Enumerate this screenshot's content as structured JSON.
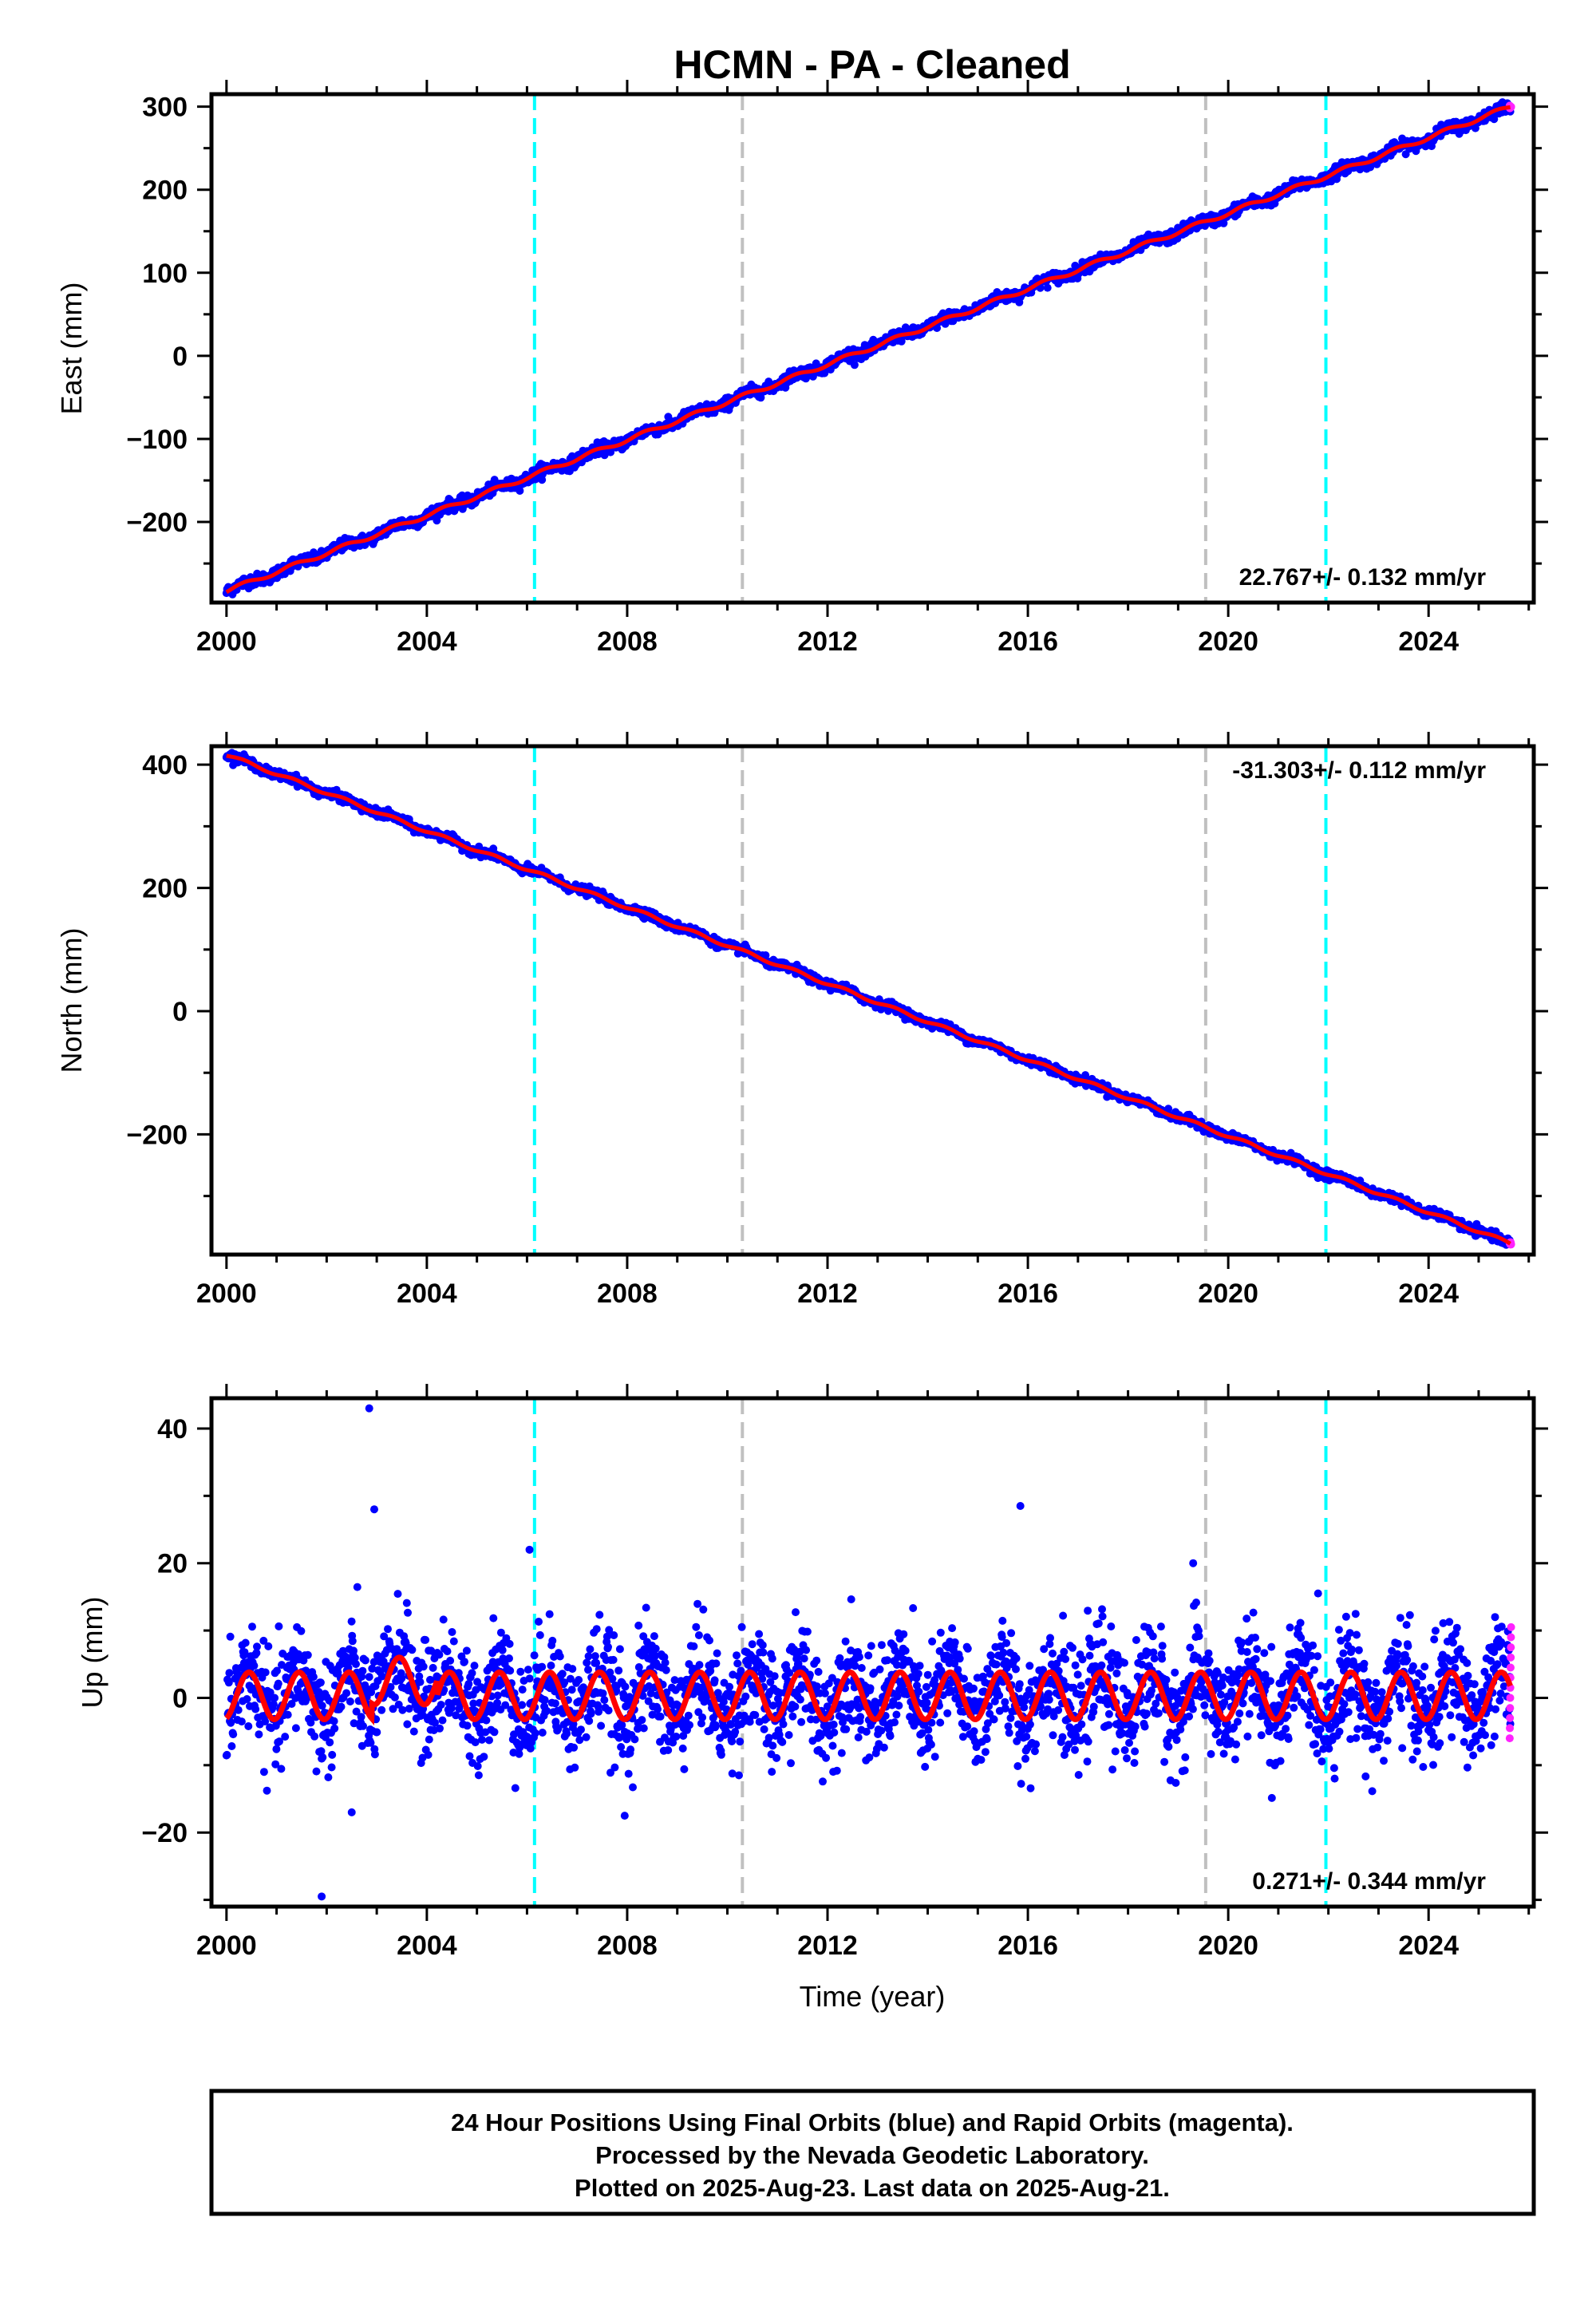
{
  "title": "HCMN  - PA - Cleaned",
  "xlabel": "Time (year)",
  "footer": [
    "24 Hour Positions Using Final Orbits (blue) and Rapid Orbits (magenta).",
    "Processed by the Nevada Geodetic Laboratory.",
    "Plotted on 2025-Aug-23. Last data on 2025-Aug-21."
  ],
  "colors": {
    "final": "#0000ff",
    "rapid": "#ff22ff",
    "model": "#ff0000",
    "event_cyan": "#00ffff",
    "event_gray": "#c0c0c0"
  },
  "chart_data": [
    {
      "type": "scatter",
      "panel": "east",
      "ylabel": "East (mm)",
      "xlim": [
        1999.7,
        2026.1
      ],
      "ylim": [
        -297,
        315
      ],
      "yticks": [
        -200,
        -100,
        0,
        100,
        200,
        300
      ],
      "xticks": [
        2000,
        2004,
        2008,
        2012,
        2016,
        2020,
        2024
      ],
      "rate_label": "22.767+/- 0.132 mm/yr",
      "rate_position": "bottom-right",
      "start": [
        2000.0,
        -283
      ],
      "end": [
        2025.64,
        300
      ],
      "rate_mm_per_yr": 22.767,
      "event_lines": [
        {
          "x": 2006.15,
          "kind": "cyan"
        },
        {
          "x": 2010.3,
          "kind": "gray"
        },
        {
          "x": 2019.55,
          "kind": "gray"
        },
        {
          "x": 2021.95,
          "kind": "cyan"
        }
      ]
    },
    {
      "type": "scatter",
      "panel": "north",
      "ylabel": "North (mm)",
      "xlim": [
        1999.7,
        2026.1
      ],
      "ylim": [
        -395,
        430
      ],
      "yticks": [
        -200,
        0,
        200,
        400
      ],
      "xticks": [
        2000,
        2004,
        2008,
        2012,
        2016,
        2020,
        2024
      ],
      "rate_label": "-31.303+/- 0.112 mm/yr",
      "rate_position": "top-right",
      "start": [
        2000.0,
        416
      ],
      "end": [
        2025.64,
        -377
      ],
      "rate_mm_per_yr": -31.303,
      "event_lines": [
        {
          "x": 2006.15,
          "kind": "cyan"
        },
        {
          "x": 2010.3,
          "kind": "gray"
        },
        {
          "x": 2019.55,
          "kind": "gray"
        },
        {
          "x": 2021.95,
          "kind": "cyan"
        }
      ]
    },
    {
      "type": "scatter",
      "panel": "up",
      "ylabel": "Up (mm)",
      "xlim": [
        1999.7,
        2026.1
      ],
      "ylim": [
        -31,
        44.5
      ],
      "yticks": [
        -20,
        0,
        20,
        40
      ],
      "xticks": [
        2000,
        2004,
        2008,
        2012,
        2016,
        2020,
        2024
      ],
      "rate_label": "0.271+/- 0.344 mm/yr",
      "rate_position": "bottom-right",
      "seasonal_amplitude_mm": 3.5,
      "scatter_sd_mm": 4,
      "outliers": [
        [
          2002.85,
          43
        ],
        [
          2002.95,
          28
        ],
        [
          2001.9,
          -29.5
        ],
        [
          2002.5,
          -17
        ],
        [
          2006.05,
          22
        ],
        [
          2015.85,
          28.5
        ],
        [
          2019.3,
          20
        ],
        [
          2007.95,
          -17.5
        ]
      ],
      "event_lines": [
        {
          "x": 2006.15,
          "kind": "cyan"
        },
        {
          "x": 2010.3,
          "kind": "gray"
        },
        {
          "x": 2019.55,
          "kind": "gray"
        },
        {
          "x": 2021.95,
          "kind": "cyan"
        }
      ]
    }
  ]
}
